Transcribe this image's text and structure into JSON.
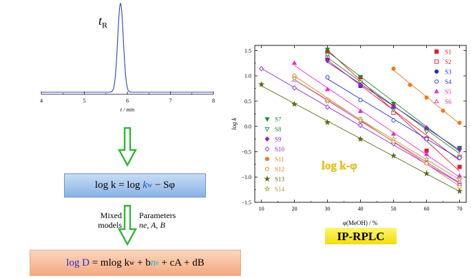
{
  "chromatogram": {
    "peak_label": "t",
    "peak_label_sub": "R",
    "x_ticks": [
      "4",
      "5",
      "6",
      "7",
      "8"
    ],
    "x_label": "t / min",
    "color": "#2a3fd0"
  },
  "flow": {
    "arrow_color": "#2fb53a",
    "eq1": {
      "lhs": "log k = log ",
      "kw": "k",
      "kw_sub": "w",
      "rhs": " − Sφ"
    },
    "mixed_label": "Mixed models",
    "params_label": "Parameters",
    "params_vars": "ne, A, B",
    "eq2": {
      "logD": "log D",
      "rest1": " = mlog k",
      "rest1_sub": "w",
      "rest2": " + b",
      "ne": "n",
      "ne_sub": "e",
      "rest3": " + cA + dB"
    }
  },
  "chart_data": {
    "type": "scatter",
    "title": "",
    "xlabel": "φ(MeOH) / %",
    "ylabel": "log k",
    "xlim": [
      8,
      72
    ],
    "ylim": [
      -1.5,
      1.6
    ],
    "x_ticks": [
      10,
      20,
      30,
      40,
      50,
      60,
      70
    ],
    "y_ticks": [
      -1.5,
      -1.0,
      -0.5,
      0.0,
      0.5,
      1.0,
      1.5
    ],
    "grid": false,
    "annotation": "log k-φ",
    "annotation_color": "#f2d21b",
    "caption": "IP-RPLC",
    "caption_bg": "#f5ea1c",
    "legend_right_position": "top-right",
    "legend_left_position": "middle-left",
    "series": [
      {
        "name": "S1",
        "color": "#e8192c",
        "marker": "square",
        "filled": true,
        "x": [
          30,
          40,
          50,
          60,
          70
        ],
        "y": [
          1.47,
          0.97,
          0.4,
          -0.48,
          -0.8
        ]
      },
      {
        "name": "S2",
        "color": "#e8192c",
        "marker": "square",
        "filled": false,
        "x": [
          30,
          40,
          50,
          60,
          70
        ],
        "y": [
          1.36,
          0.8,
          0.27,
          -0.24,
          -0.6
        ]
      },
      {
        "name": "S3",
        "color": "#1a2fd1",
        "marker": "circle",
        "filled": true,
        "x": [
          30,
          40,
          50,
          60,
          70
        ],
        "y": [
          1.32,
          0.8,
          0.37,
          -0.05,
          -0.43
        ]
      },
      {
        "name": "S4",
        "color": "#1a2fd1",
        "marker": "circle",
        "filled": false,
        "x": [
          30,
          40,
          50,
          60,
          70
        ],
        "y": [
          0.97,
          0.52,
          0.12,
          -0.25,
          -0.62
        ]
      },
      {
        "name": "S5",
        "color": "#e62ad2",
        "marker": "triangle",
        "filled": true,
        "x": [
          20,
          30,
          40,
          50,
          60,
          70
        ],
        "y": [
          1.25,
          0.73,
          0.3,
          -0.15,
          -0.55,
          -0.98
        ]
      },
      {
        "name": "S6",
        "color": "#e62ad2",
        "marker": "triangle",
        "filled": false,
        "x": [
          20,
          30,
          40,
          50,
          60,
          70
        ],
        "y": [
          0.92,
          0.52,
          0.1,
          -0.3,
          -0.72,
          -1.1
        ]
      },
      {
        "name": "S7",
        "color": "#1b8a2b",
        "marker": "triangle-down",
        "filled": true,
        "x": [
          30,
          40,
          50,
          60,
          70
        ],
        "y": [
          1.52,
          0.98,
          0.45,
          -0.08,
          -0.42
        ]
      },
      {
        "name": "S8",
        "color": "#1b8a2b",
        "marker": "triangle-down",
        "filled": false,
        "x": [
          30,
          40,
          50,
          60,
          70
        ],
        "y": [
          1.42,
          0.87,
          0.33,
          -0.1,
          -0.47
        ]
      },
      {
        "name": "S9",
        "color": "#8a28c8",
        "marker": "diamond",
        "filled": true,
        "x": [
          30,
          40,
          50,
          60,
          70
        ],
        "y": [
          1.3,
          0.82,
          0.38,
          -0.03,
          -0.45
        ]
      },
      {
        "name": "S10",
        "color": "#8a28c8",
        "marker": "diamond",
        "filled": false,
        "x": [
          10,
          20,
          30,
          40,
          50,
          60,
          70
        ],
        "y": [
          1.14,
          0.76,
          0.38,
          0.02,
          -0.34,
          -0.72,
          -1.16
        ]
      },
      {
        "name": "S11",
        "color": "#f07a16",
        "marker": "circle",
        "filled": true,
        "x": [
          50,
          55,
          60,
          65,
          70
        ],
        "y": [
          1.14,
          0.82,
          0.57,
          0.31,
          0.07
        ]
      },
      {
        "name": "S12",
        "color": "#f07a16",
        "marker": "circle",
        "filled": false,
        "x": [
          20,
          30,
          40,
          50,
          60,
          70
        ],
        "y": [
          1.0,
          0.53,
          0.15,
          -0.3,
          -0.73,
          -1.2
        ]
      },
      {
        "name": "S13",
        "color": "#5a6a14",
        "marker": "star",
        "filled": true,
        "x": [
          10,
          20,
          30,
          40,
          50,
          60,
          70
        ],
        "y": [
          0.83,
          0.44,
          0.08,
          -0.25,
          -0.58,
          -0.93,
          -1.28
        ]
      },
      {
        "name": "S14",
        "color": "#b0a43a",
        "marker": "star",
        "filled": false,
        "x": [
          20,
          30,
          40,
          50,
          60,
          70
        ],
        "y": [
          0.95,
          0.5,
          0.12,
          -0.25,
          -0.65,
          -1.05
        ]
      }
    ]
  }
}
